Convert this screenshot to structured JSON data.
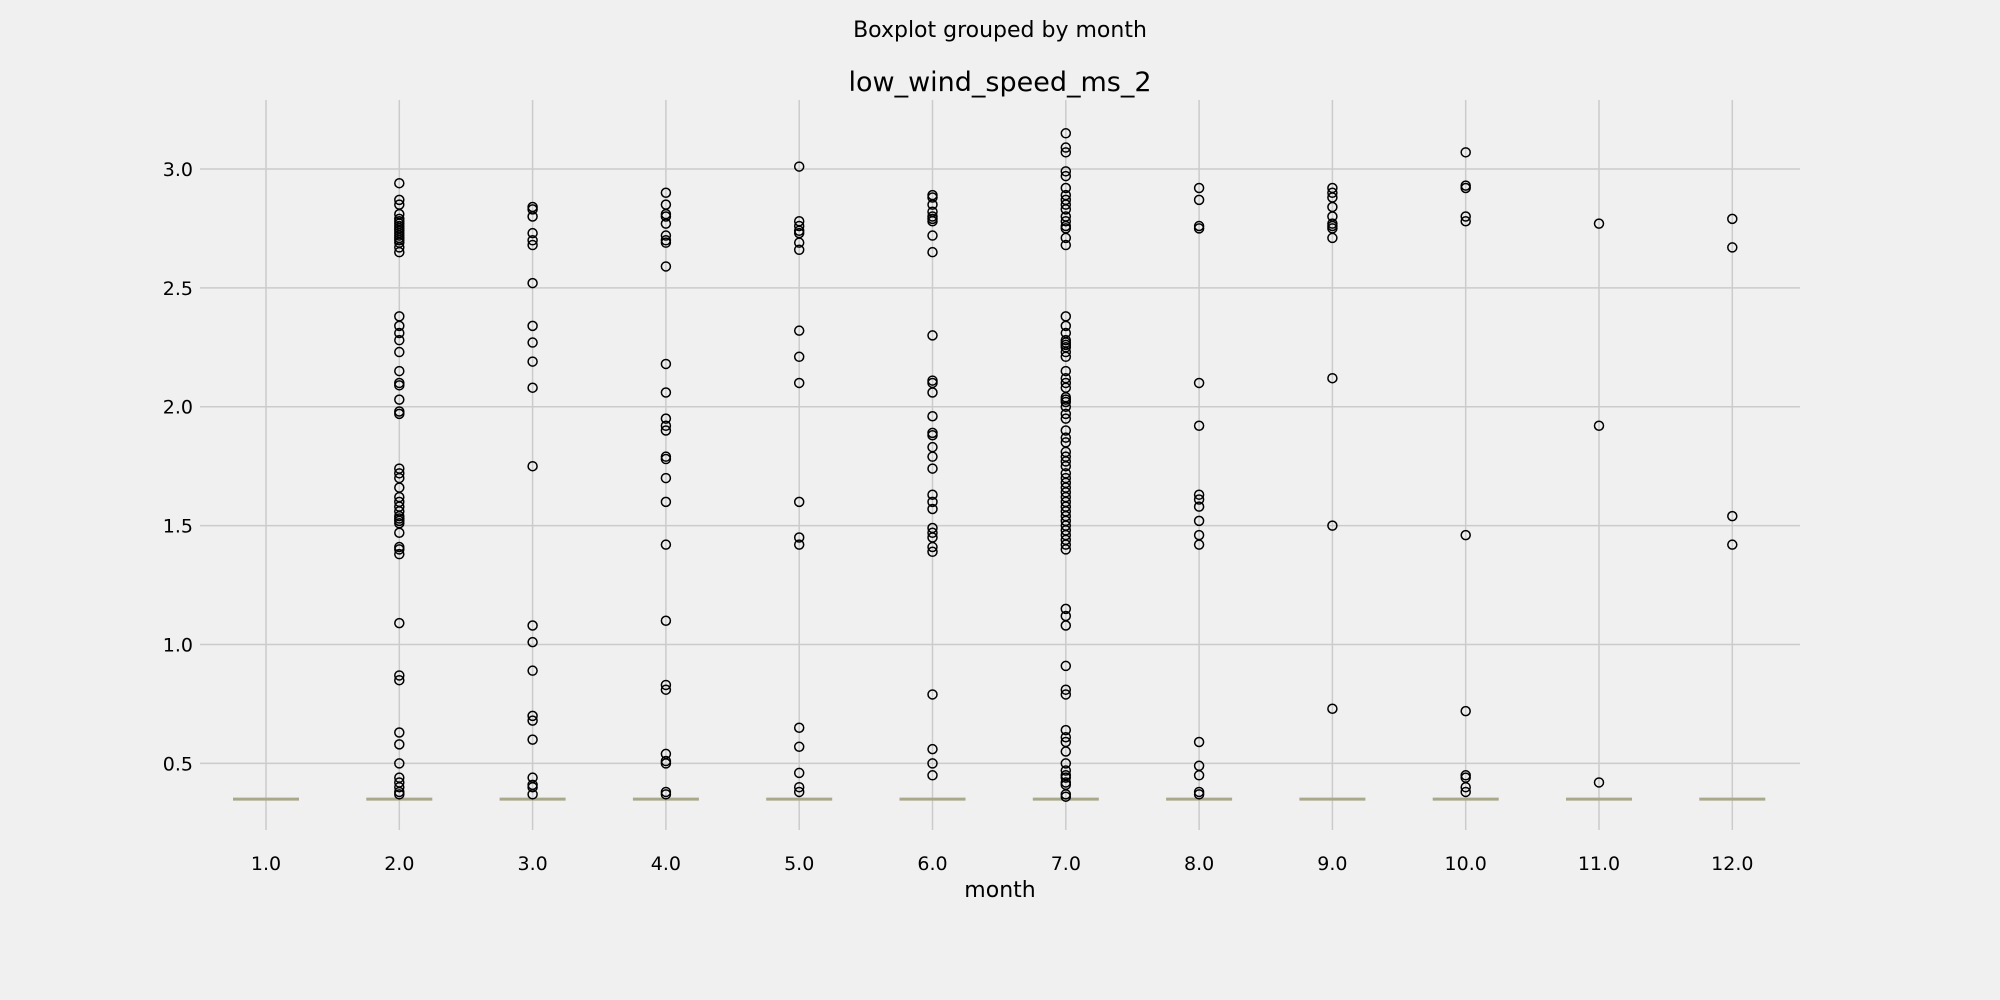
{
  "chart_data": {
    "type": "boxplot",
    "suptitle": "Boxplot grouped by month",
    "title": "low_wind_speed_ms_2",
    "xlabel": "month",
    "ylabel": "",
    "ylim": [
      0.22,
      3.29
    ],
    "yticks": [
      0.5,
      1.0,
      1.5,
      2.0,
      2.5,
      3.0
    ],
    "ytick_labels": [
      "0.5",
      "1.0",
      "1.5",
      "2.0",
      "2.5",
      "3.0"
    ],
    "grid": true,
    "categories": [
      "1.0",
      "2.0",
      "3.0",
      "4.0",
      "5.0",
      "6.0",
      "7.0",
      "8.0",
      "9.0",
      "10.0",
      "11.0",
      "12.0"
    ],
    "box_value": 0.35,
    "median_color": "#a8a88a",
    "fliers": [
      [],
      [
        2.94,
        2.87,
        2.85,
        2.81,
        2.79,
        2.78,
        2.77,
        2.76,
        2.75,
        2.74,
        2.73,
        2.72,
        2.71,
        2.7,
        2.69,
        2.67,
        2.65,
        2.38,
        2.34,
        2.31,
        2.28,
        2.23,
        2.15,
        2.1,
        2.09,
        2.03,
        1.98,
        1.97,
        1.74,
        1.72,
        1.7,
        1.66,
        1.62,
        1.6,
        1.58,
        1.56,
        1.54,
        1.53,
        1.52,
        1.51,
        1.47,
        1.41,
        1.4,
        1.38,
        1.09,
        0.87,
        0.85,
        0.63,
        0.58,
        0.5,
        0.44,
        0.42,
        0.4,
        0.38,
        0.37
      ],
      [
        2.84,
        2.83,
        2.8,
        2.73,
        2.7,
        2.68,
        2.52,
        2.34,
        2.27,
        2.19,
        2.08,
        1.75,
        1.08,
        1.01,
        0.89,
        0.7,
        0.68,
        0.6,
        0.44,
        0.41,
        0.4,
        0.37
      ],
      [
        2.9,
        2.85,
        2.81,
        2.8,
        2.77,
        2.72,
        2.7,
        2.69,
        2.59,
        2.18,
        2.06,
        1.95,
        1.92,
        1.9,
        1.79,
        1.78,
        1.7,
        1.6,
        1.42,
        1.1,
        0.83,
        0.81,
        0.54,
        0.51,
        0.5,
        0.38,
        0.37
      ],
      [
        3.01,
        2.78,
        2.76,
        2.74,
        2.73,
        2.69,
        2.66,
        2.32,
        2.21,
        2.1,
        1.6,
        1.45,
        1.42,
        0.65,
        0.57,
        0.46,
        0.4,
        0.38
      ],
      [
        2.89,
        2.88,
        2.85,
        2.82,
        2.8,
        2.79,
        2.78,
        2.72,
        2.65,
        2.3,
        2.11,
        2.1,
        2.06,
        1.96,
        1.89,
        1.88,
        1.83,
        1.79,
        1.74,
        1.63,
        1.6,
        1.57,
        1.49,
        1.47,
        1.45,
        1.41,
        1.39,
        0.79,
        0.56,
        0.5,
        0.45
      ],
      [
        3.15,
        3.09,
        3.07,
        2.99,
        2.97,
        2.92,
        2.89,
        2.87,
        2.85,
        2.83,
        2.8,
        2.78,
        2.76,
        2.75,
        2.71,
        2.68,
        2.38,
        2.34,
        2.31,
        2.28,
        2.27,
        2.26,
        2.25,
        2.23,
        2.21,
        2.15,
        2.12,
        2.1,
        2.08,
        2.04,
        2.03,
        2.02,
        2.0,
        1.97,
        1.95,
        1.9,
        1.87,
        1.85,
        1.81,
        1.79,
        1.77,
        1.75,
        1.72,
        1.7,
        1.68,
        1.66,
        1.64,
        1.62,
        1.6,
        1.58,
        1.56,
        1.54,
        1.52,
        1.5,
        1.48,
        1.46,
        1.44,
        1.42,
        1.4,
        1.15,
        1.12,
        1.08,
        0.91,
        0.81,
        0.79,
        0.64,
        0.61,
        0.59,
        0.55,
        0.5,
        0.47,
        0.45,
        0.44,
        0.42,
        0.41,
        0.37,
        0.36
      ],
      [
        2.92,
        2.87,
        2.76,
        2.75,
        2.1,
        1.92,
        1.63,
        1.61,
        1.58,
        1.52,
        1.46,
        1.42,
        0.59,
        0.49,
        0.45,
        0.38,
        0.37
      ],
      [
        2.92,
        2.9,
        2.88,
        2.84,
        2.8,
        2.77,
        2.76,
        2.75,
        2.71,
        2.12,
        1.5,
        0.73
      ],
      [
        3.07,
        2.93,
        2.92,
        2.8,
        2.78,
        1.46,
        0.72,
        0.45,
        0.44,
        0.4,
        0.38
      ],
      [
        2.77,
        1.92,
        0.42
      ],
      [
        2.79,
        2.67,
        1.54,
        1.42
      ]
    ]
  }
}
